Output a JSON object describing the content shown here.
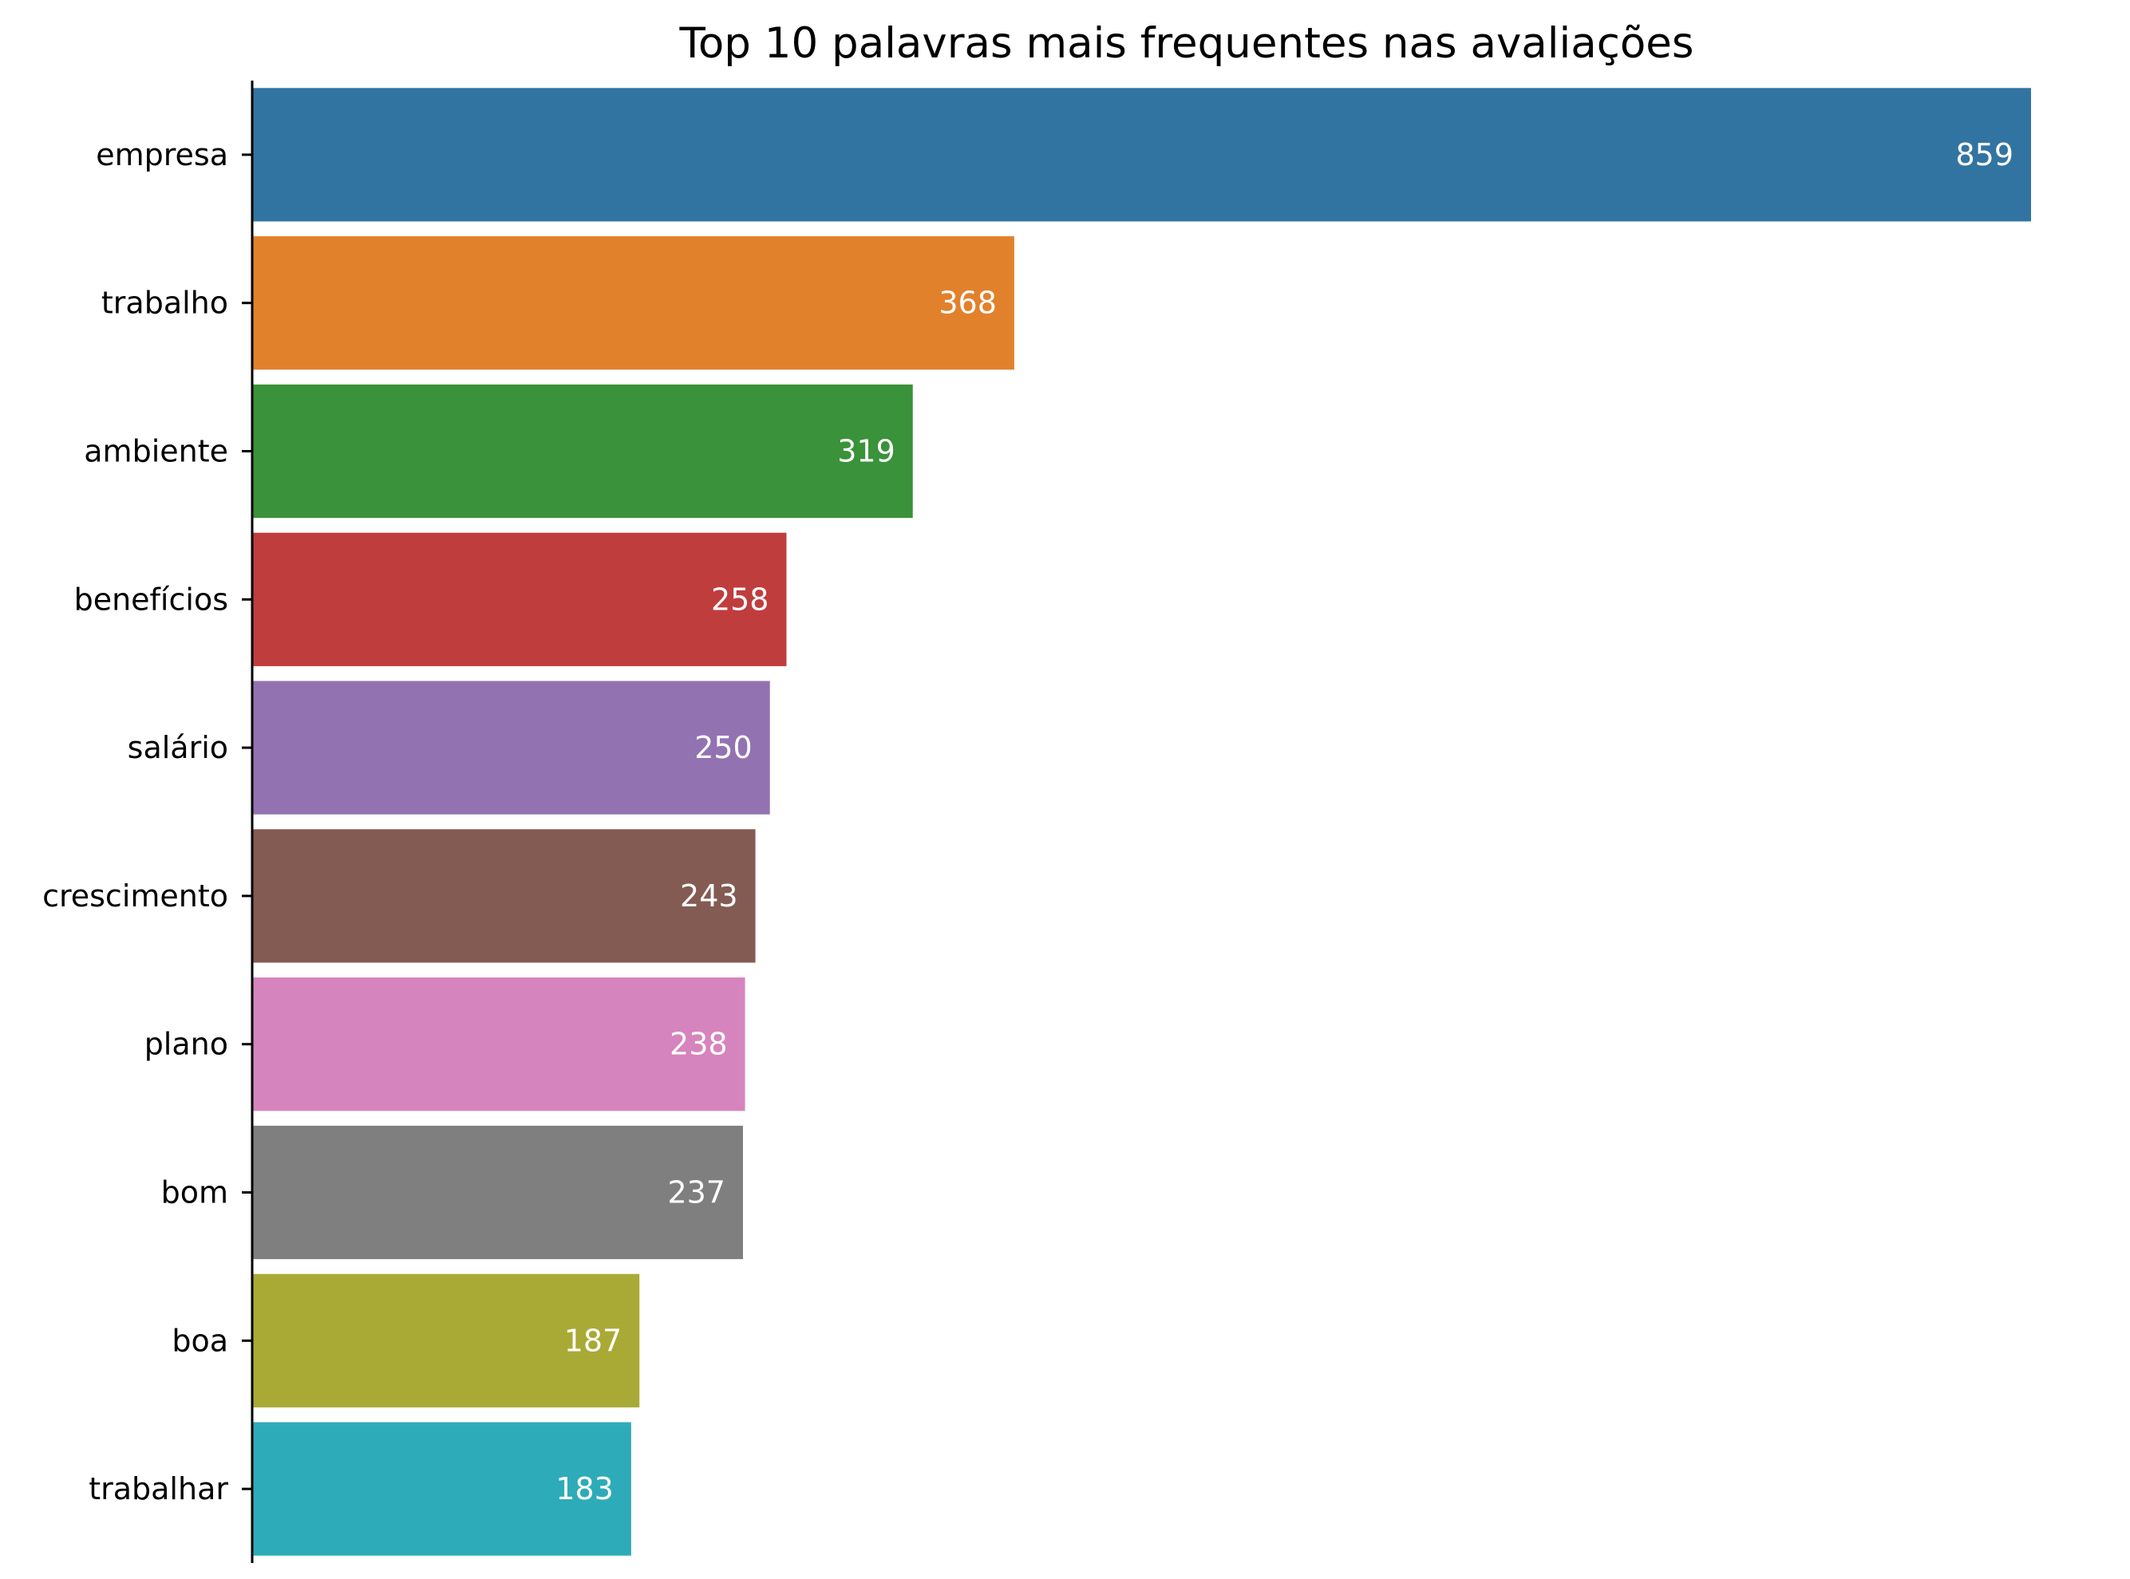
{
  "chart_data": {
    "type": "bar",
    "orientation": "horizontal",
    "title": "Top 10 palavras mais frequentes nas avaliações",
    "xlabel": "",
    "ylabel": "",
    "categories": [
      "empresa",
      "trabalho",
      "ambiente",
      "benefícios",
      "salário",
      "crescimento",
      "plano",
      "bom",
      "boa",
      "trabalhar"
    ],
    "values": [
      859,
      368,
      319,
      258,
      250,
      243,
      238,
      237,
      187,
      183
    ],
    "data_labels": [
      "859",
      "368",
      "319",
      "258",
      "250",
      "243",
      "238",
      "237",
      "187",
      "183"
    ],
    "colors": [
      "#3274a1",
      "#e1812c",
      "#3a923a",
      "#c03d3e",
      "#9372b2",
      "#845b53",
      "#d684bd",
      "#7f7f7f",
      "#a9aa35",
      "#2eabb8"
    ],
    "xlim": [
      0,
      859
    ],
    "grid": false,
    "legend": "none",
    "x_axis_visible": false
  }
}
